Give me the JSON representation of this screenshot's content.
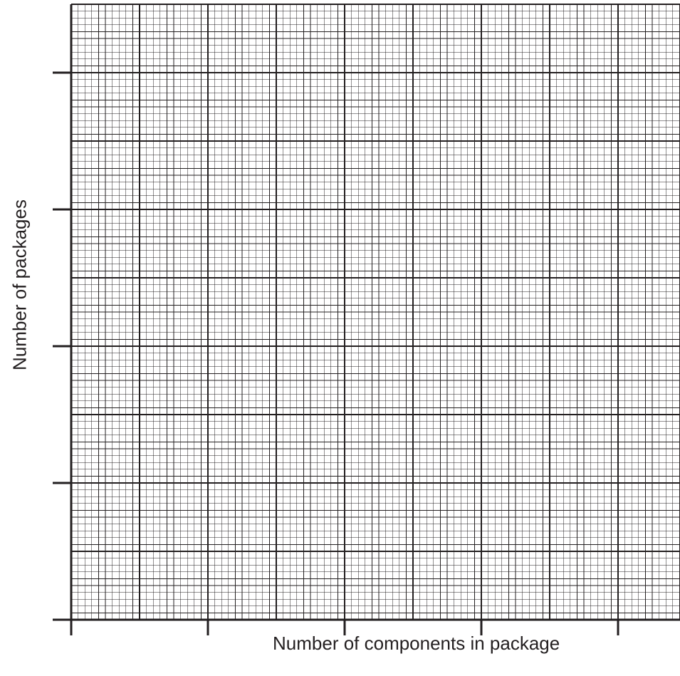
{
  "chart_data": {
    "type": "scatter",
    "title": "",
    "xlabel": "Number of components in package",
    "ylabel": "Number of packages",
    "series": [],
    "x_ticks_labeled": false,
    "y_ticks_labeled": false,
    "x_major_divisions": 9,
    "y_major_divisions": 9,
    "x_minor_per_major": 10,
    "y_minor_per_major": 10,
    "axis_tick_every_majors": 2,
    "grid": true,
    "colors": {
      "ink": "#231f20",
      "background": "#ffffff"
    }
  }
}
